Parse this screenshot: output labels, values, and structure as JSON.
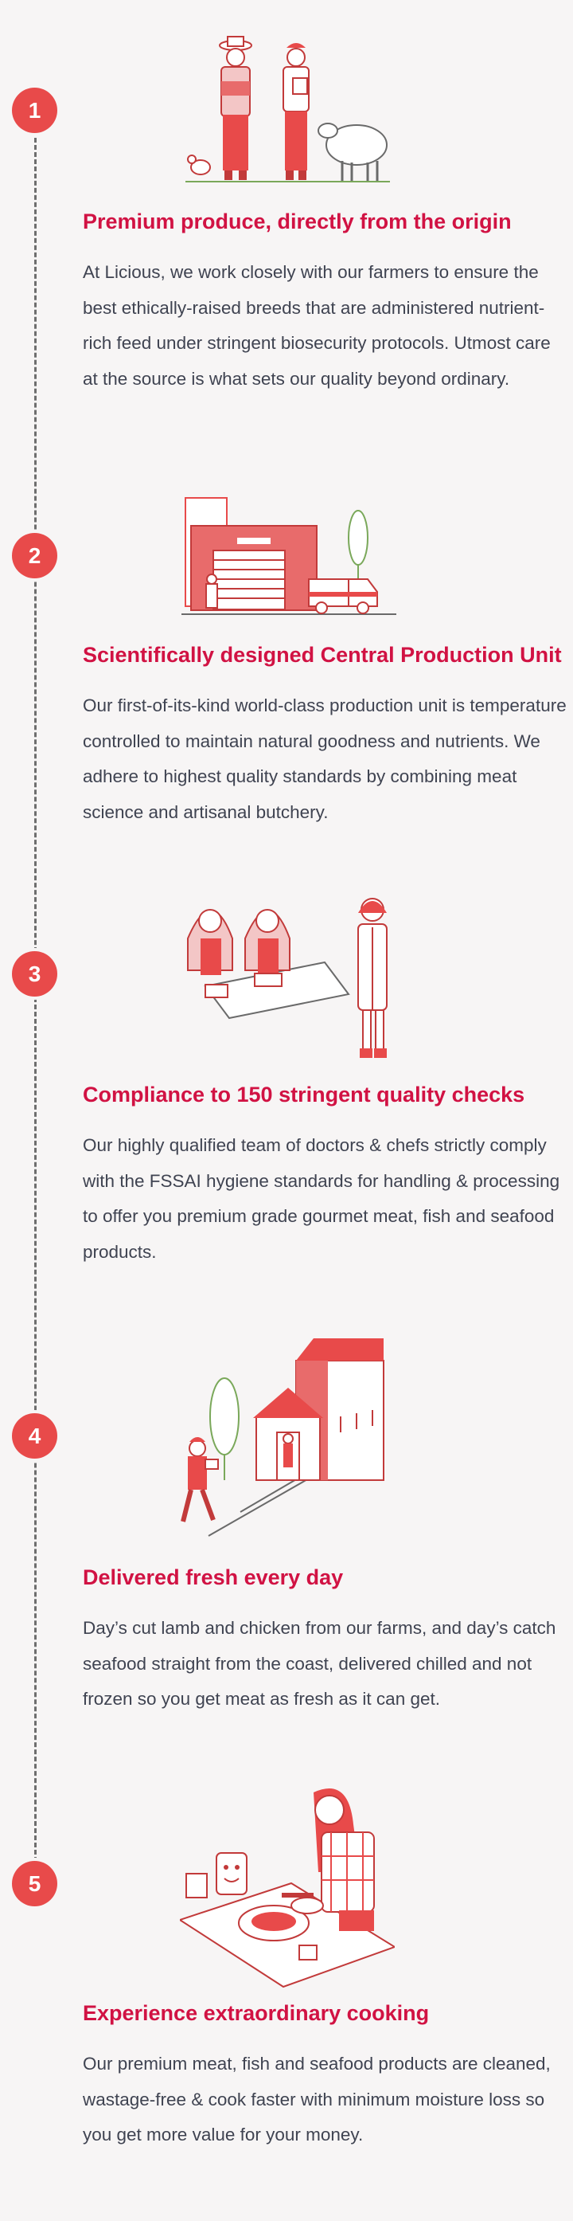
{
  "steps": [
    {
      "number": "1",
      "title": "Premium produce, directly from the origin",
      "description": "At Licious, we work closely with our farmers to ensure the best ethically-raised breeds that are administered nutrient-rich feed under stringent biosecurity protocols. Utmost care at the source is what sets our quality beyond ordinary.",
      "illustration_icon": "farmers-with-sheep-illustration"
    },
    {
      "number": "2",
      "title": "Scientifically designed Central Production Unit",
      "description": "Our first-of-its-kind world-class production unit is temperature controlled to maintain natural goodness and nutrients. We adhere to highest quality standards by combining meat science and artisanal butchery.",
      "illustration_icon": "production-unit-illustration"
    },
    {
      "number": "3",
      "title": "Compliance to 150 stringent quality checks",
      "description": "Our highly qualified team of doctors & chefs strictly comply with the FSSAI hygiene standards for handling & processing to offer you premium grade gourmet meat, fish and seafood products.",
      "illustration_icon": "quality-check-illustration"
    },
    {
      "number": "4",
      "title": "Delivered fresh every day",
      "description": "Day’s cut lamb and chicken from our farms, and day’s catch seafood straight from the coast, delivered chilled and not frozen so you get meat as fresh as it can get.",
      "illustration_icon": "delivery-illustration"
    },
    {
      "number": "5",
      "title": "Experience extraordinary cooking",
      "description": "Our premium meat, fish and seafood products are cleaned, wastage-free & cook faster with minimum moisture loss so you get more value for your money.",
      "illustration_icon": "cooking-illustration"
    }
  ],
  "colors": {
    "accent": "#e84a4a",
    "title": "#d11243",
    "text": "#3f4351",
    "line": "#6e6e6e",
    "background": "#f7f5f5"
  }
}
